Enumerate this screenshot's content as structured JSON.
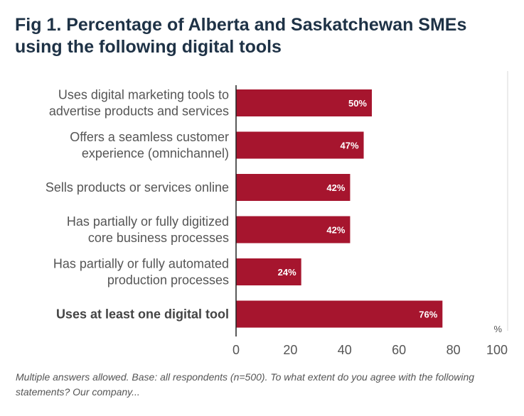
{
  "title": "Fig 1. Percentage of Alberta and Saskatchewan SMEs using the following digital tools",
  "footnote": "Multiple answers allowed. Base: all respondents (n=500). To what extent do you agree with the following statements? Our company...",
  "colors": {
    "bar": "#a6152e",
    "axis": "#222222",
    "grid": "#d9d9d9"
  },
  "chart_data": {
    "type": "bar",
    "orientation": "horizontal",
    "categories": [
      [
        "Uses digital marketing tools to",
        "advertise products and services"
      ],
      [
        "Offers a seamless customer",
        "experience (omnichannel)"
      ],
      [
        "Sells products or services online"
      ],
      [
        "Has partially or fully digitized",
        "core business processes"
      ],
      [
        "Has partially or fully automated",
        "production processes"
      ],
      [
        "Uses at least one digital tool"
      ]
    ],
    "bold_categories": [
      5
    ],
    "values": [
      50,
      47,
      42,
      42,
      24,
      76
    ],
    "data_labels": [
      "50%",
      "47%",
      "42%",
      "42%",
      "24%",
      "76%"
    ],
    "xlim": [
      0,
      100
    ],
    "xticks": [
      "0",
      "20",
      "40",
      "60",
      "80",
      "100"
    ],
    "unit_label": "%",
    "grid": "right edge only",
    "legend": "none"
  }
}
